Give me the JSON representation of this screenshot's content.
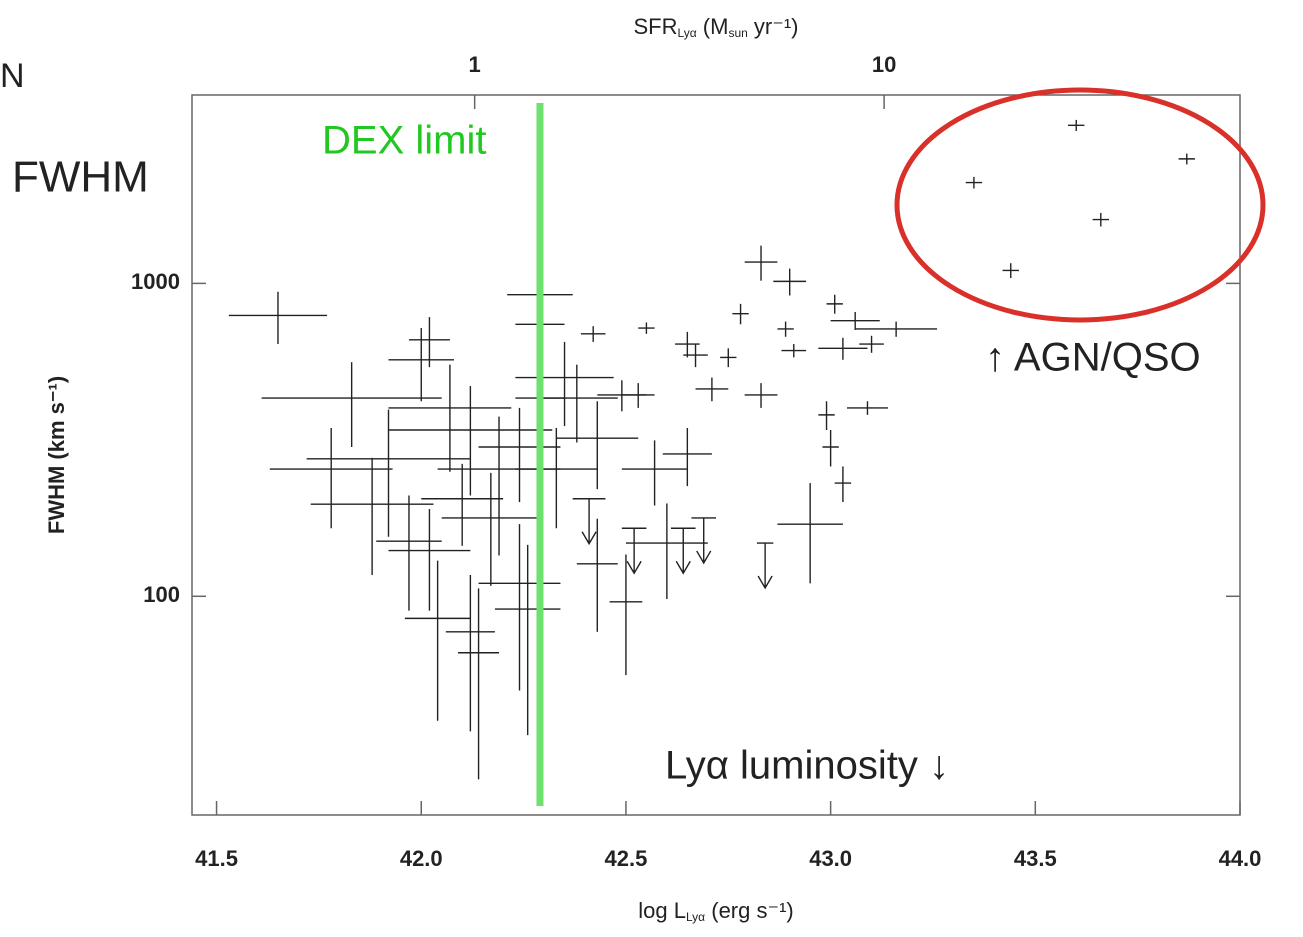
{
  "chart_data": {
    "type": "scatter",
    "annotations": {
      "corner": "N",
      "fwhm": "FWHM",
      "dex": "DEX limit",
      "agn": "↑ AGN/QSO",
      "lum": "Lyα luminosity ↓"
    },
    "dex_limit": 42.29,
    "xlabel": {
      "main": "log L",
      "sub": "Lyα",
      "unit": " (erg s⁻¹)"
    },
    "x2label": {
      "main": "SFR",
      "sub": "Lyα",
      "unit1": " (M",
      "sub2": "sun",
      "unit2": " yr⁻¹)"
    },
    "ylabel": "FWHM (km s⁻¹)",
    "xlim": [
      41.44,
      44.0
    ],
    "xticks": [
      41.5,
      {
        "value": 42,
        "label": "42.0"
      },
      42.5,
      {
        "value": 43,
        "label": "43.0"
      },
      43.5,
      {
        "value": 44,
        "label": "44.0"
      }
    ],
    "x2lim": [
      0.204,
      74
    ],
    "x2ticks": [
      1,
      10
    ],
    "x2log": true,
    "ylim": [
      20,
      4000
    ],
    "yticks": [
      100,
      1000
    ],
    "ylog": true,
    "color": "#222222",
    "points": {
      "x": [
        43.35,
        43.6,
        43.87,
        43.66,
        43.44,
        41.65,
        42.83,
        42.9,
        43.01,
        43.06,
        43.1,
        43.16,
        42.78,
        42.89,
        42.91,
        43.03,
        43.09,
        42.99,
        43.0,
        43.03,
        42.95,
        42.67,
        42.65,
        42.75,
        42.71,
        42.83,
        42.55,
        42.49,
        42.53,
        42.42,
        42.35,
        42.38,
        42.29,
        42.29,
        42.29,
        42.24,
        42.19,
        42.12,
        42.07,
        42.02,
        42.0,
        41.92,
        41.83,
        41.78,
        41.97,
        42.02,
        42.04,
        42.12,
        42.14,
        42.24,
        42.26,
        42.43,
        42.5,
        42.6,
        42.33,
        42.43,
        42.57,
        42.65,
        41.88,
        42.1,
        42.17
      ],
      "y": [
        2100,
        3200,
        2500,
        1600,
        1100,
        790,
        1170,
        1015,
        860,
        760,
        640,
        715,
        800,
        715,
        610,
        620,
        400,
        380,
        300,
        230,
        170,
        590,
        640,
        580,
        460,
        440,
        720,
        440,
        440,
        690,
        500,
        430,
        740,
        920,
        430,
        300,
        255,
        340,
        400,
        660,
        570,
        275,
        430,
        255,
        150,
        140,
        85,
        77,
        66,
        110,
        91,
        127,
        96,
        148,
        255,
        320,
        255,
        285,
        197,
        205,
        178
      ],
      "xerr": [
        0.02,
        0.02,
        0.02,
        0.02,
        0.02,
        0.12,
        0.04,
        0.04,
        0.02,
        0.06,
        0.03,
        0.1,
        0.02,
        0.02,
        0.03,
        0.06,
        0.05,
        0.02,
        0.02,
        0.02,
        0.08,
        0.03,
        0.03,
        0.02,
        0.04,
        0.04,
        0.02,
        0.06,
        0.04,
        0.03,
        0.12,
        0.1,
        0.06,
        0.08,
        0.06,
        0.1,
        0.15,
        0.2,
        0.15,
        0.05,
        0.08,
        0.2,
        0.22,
        0.15,
        0.08,
        0.1,
        0.08,
        0.06,
        0.05,
        0.1,
        0.08,
        0.05,
        0.04,
        0.1,
        0.1,
        0.1,
        0.08,
        0.06,
        0.15,
        0.1,
        0.12
      ],
      "yerr": [
        90,
        130,
        100,
        80,
        60,
        150,
        150,
        100,
        60,
        50,
        40,
        40,
        60,
        40,
        30,
        50,
        20,
        40,
        40,
        30,
        60,
        50,
        60,
        40,
        40,
        40,
        30,
        50,
        40,
        40,
        150,
        120,
        200,
        350,
        150,
        100,
        120,
        130,
        150,
        120,
        150,
        120,
        130,
        90,
        60,
        50,
        45,
        40,
        40,
        60,
        55,
        50,
        40,
        50,
        90,
        100,
        60,
        60,
        80,
        60,
        70
      ]
    },
    "upper_limits": {
      "x": [
        42.41,
        42.52,
        42.64,
        42.69,
        42.84
      ],
      "y": [
        205,
        165,
        165,
        178,
        148
      ],
      "xerr": [
        0.04,
        0.03,
        0.03,
        0.03,
        0.02
      ]
    }
  }
}
